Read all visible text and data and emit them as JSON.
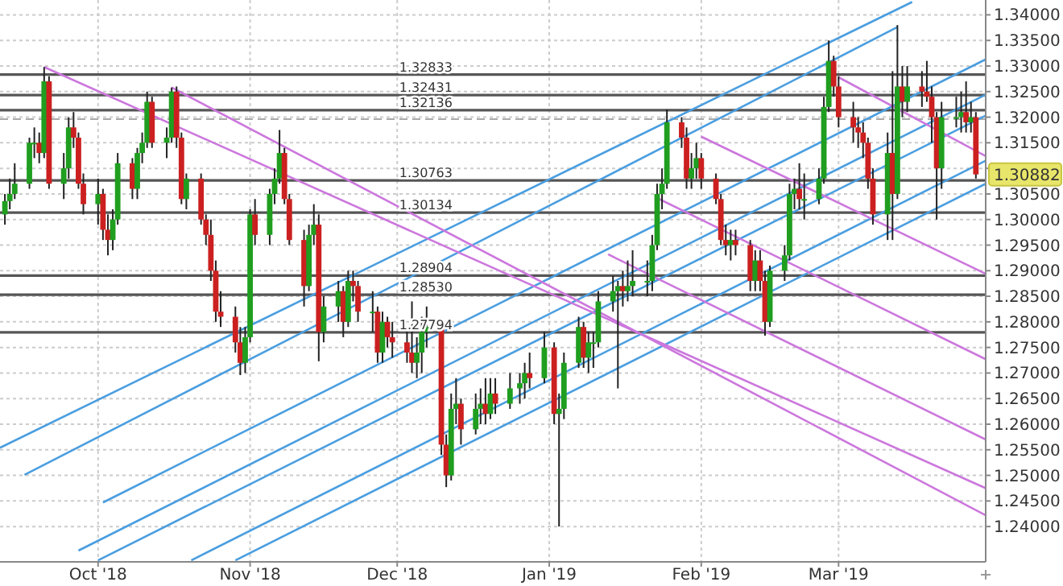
{
  "chart_data": {
    "type": "candlestick",
    "x": [
      "2018-09-12",
      "2018-09-13",
      "2018-09-14",
      "2018-09-17",
      "2018-09-18",
      "2018-09-19",
      "2018-09-20",
      "2018-09-21",
      "2018-09-24",
      "2018-09-25",
      "2018-09-26",
      "2018-09-27",
      "2018-09-28",
      "2018-10-01",
      "2018-10-02",
      "2018-10-03",
      "2018-10-04",
      "2018-10-05",
      "2018-10-08",
      "2018-10-09",
      "2018-10-10",
      "2018-10-11",
      "2018-10-12",
      "2018-10-15",
      "2018-10-16",
      "2018-10-17",
      "2018-10-18",
      "2018-10-19",
      "2018-10-22",
      "2018-10-23",
      "2018-10-24",
      "2018-10-25",
      "2018-10-26",
      "2018-10-29",
      "2018-10-30",
      "2018-10-31",
      "2018-11-01",
      "2018-11-02",
      "2018-11-05",
      "2018-11-06",
      "2018-11-07",
      "2018-11-08",
      "2018-11-09",
      "2018-11-12",
      "2018-11-13",
      "2018-11-14",
      "2018-11-15",
      "2018-11-16",
      "2018-11-19",
      "2018-11-20",
      "2018-11-21",
      "2018-11-22",
      "2018-11-23",
      "2018-11-26",
      "2018-11-27",
      "2018-11-28",
      "2018-11-29",
      "2018-11-30",
      "2018-12-03",
      "2018-12-04",
      "2018-12-05",
      "2018-12-06",
      "2018-12-07",
      "2018-12-10",
      "2018-12-11",
      "2018-12-12",
      "2018-12-13",
      "2018-12-14",
      "2018-12-17",
      "2018-12-18",
      "2018-12-19",
      "2018-12-20",
      "2018-12-21",
      "2018-12-24",
      "2018-12-26",
      "2018-12-27",
      "2018-12-28",
      "2018-12-31",
      "2019-01-02",
      "2019-01-03",
      "2019-01-04",
      "2019-01-07",
      "2019-01-08",
      "2019-01-09",
      "2019-01-10",
      "2019-01-11",
      "2019-01-14",
      "2019-01-15",
      "2019-01-16",
      "2019-01-17",
      "2019-01-18",
      "2019-01-21",
      "2019-01-22",
      "2019-01-23",
      "2019-01-24",
      "2019-01-25",
      "2019-01-28",
      "2019-01-29",
      "2019-01-30",
      "2019-01-31",
      "2019-02-01",
      "2019-02-04",
      "2019-02-05",
      "2019-02-06",
      "2019-02-07",
      "2019-02-08",
      "2019-02-11",
      "2019-02-12",
      "2019-02-13",
      "2019-02-14",
      "2019-02-15",
      "2019-02-18",
      "2019-02-19",
      "2019-02-20",
      "2019-02-21",
      "2019-02-22",
      "2019-02-25",
      "2019-02-26",
      "2019-02-27",
      "2019-02-28",
      "2019-03-01",
      "2019-03-04",
      "2019-03-05",
      "2019-03-06",
      "2019-03-07",
      "2019-03-08",
      "2019-03-11",
      "2019-03-12",
      "2019-03-13",
      "2019-03-14",
      "2019-03-15",
      "2019-03-18",
      "2019-03-19",
      "2019-03-20",
      "2019-03-21",
      "2019-03-22",
      "2019-03-25",
      "2019-03-26",
      "2019-03-27",
      "2019-03-28",
      "2019-03-29"
    ],
    "ohlc": [
      [
        1.301,
        1.305,
        1.299,
        1.3036
      ],
      [
        1.3036,
        1.308,
        1.302,
        1.305
      ],
      [
        1.305,
        1.311,
        1.304,
        1.307
      ],
      [
        1.307,
        1.316,
        1.306,
        1.315
      ],
      [
        1.315,
        1.318,
        1.312,
        1.315
      ],
      [
        1.315,
        1.317,
        1.311,
        1.313
      ],
      [
        1.313,
        1.3298,
        1.312,
        1.327
      ],
      [
        1.327,
        1.328,
        1.306,
        1.307
      ],
      [
        1.307,
        1.313,
        1.304,
        1.31
      ],
      [
        1.31,
        1.32,
        1.308,
        1.318
      ],
      [
        1.318,
        1.321,
        1.314,
        1.316
      ],
      [
        1.316,
        1.317,
        1.306,
        1.307
      ],
      [
        1.307,
        1.309,
        1.301,
        1.303
      ],
      [
        1.303,
        1.308,
        1.299,
        1.305
      ],
      [
        1.305,
        1.306,
        1.296,
        1.298
      ],
      [
        1.298,
        1.301,
        1.293,
        1.296
      ],
      [
        1.296,
        1.302,
        1.294,
        1.3
      ],
      [
        1.3,
        1.313,
        1.299,
        1.311
      ],
      [
        1.311,
        1.312,
        1.304,
        1.306
      ],
      [
        1.306,
        1.314,
        1.304,
        1.313
      ],
      [
        1.313,
        1.317,
        1.311,
        1.315
      ],
      [
        1.315,
        1.325,
        1.314,
        1.323
      ],
      [
        1.323,
        1.324,
        1.314,
        1.315
      ],
      [
        1.315,
        1.318,
        1.312,
        1.316
      ],
      [
        1.316,
        1.3258,
        1.315,
        1.325
      ],
      [
        1.325,
        1.326,
        1.314,
        1.316
      ],
      [
        1.316,
        1.317,
        1.303,
        1.304
      ],
      [
        1.304,
        1.309,
        1.302,
        1.308
      ],
      [
        1.308,
        1.309,
        1.299,
        1.3
      ],
      [
        1.3,
        1.301,
        1.295,
        1.297
      ],
      [
        1.297,
        1.3,
        1.288,
        1.29
      ],
      [
        1.29,
        1.292,
        1.28,
        1.282
      ],
      [
        1.282,
        1.286,
        1.279,
        1.281
      ],
      [
        1.281,
        1.283,
        1.274,
        1.276
      ],
      [
        1.276,
        1.279,
        1.2696,
        1.272
      ],
      [
        1.272,
        1.279,
        1.27,
        1.277
      ],
      [
        1.277,
        1.302,
        1.276,
        1.301
      ],
      [
        1.301,
        1.304,
        1.295,
        1.297
      ],
      [
        1.297,
        1.306,
        1.295,
        1.305
      ],
      [
        1.305,
        1.31,
        1.303,
        1.308
      ],
      [
        1.308,
        1.3175,
        1.307,
        1.313
      ],
      [
        1.313,
        1.314,
        1.303,
        1.304
      ],
      [
        1.304,
        1.305,
        1.295,
        1.296
      ],
      [
        1.296,
        1.298,
        1.283,
        1.287
      ],
      [
        1.287,
        1.299,
        1.286,
        1.297
      ],
      [
        1.297,
        1.303,
        1.295,
        1.299
      ],
      [
        1.299,
        1.301,
        1.2723,
        1.278
      ],
      [
        1.278,
        1.285,
        1.276,
        1.283
      ],
      [
        1.283,
        1.288,
        1.28,
        1.286
      ],
      [
        1.286,
        1.287,
        1.277,
        1.28
      ],
      [
        1.28,
        1.29,
        1.279,
        1.288
      ],
      [
        1.288,
        1.29,
        1.284,
        1.287
      ],
      [
        1.287,
        1.288,
        1.28,
        1.282
      ],
      [
        1.282,
        1.286,
        1.278,
        1.282
      ],
      [
        1.282,
        1.283,
        1.272,
        1.274
      ],
      [
        1.274,
        1.282,
        1.272,
        1.28
      ],
      [
        1.28,
        1.281,
        1.275,
        1.277
      ],
      [
        1.277,
        1.28,
        1.273,
        1.276
      ],
      [
        1.276,
        1.279,
        1.272,
        1.274
      ],
      [
        1.274,
        1.284,
        1.27,
        1.272
      ],
      [
        1.272,
        1.277,
        1.269,
        1.274
      ],
      [
        1.274,
        1.281,
        1.27,
        1.278
      ],
      [
        1.278,
        1.283,
        1.275,
        1.279
      ],
      [
        1.279,
        1.28,
        1.254,
        1.256
      ],
      [
        1.256,
        1.258,
        1.2477,
        1.25
      ],
      [
        1.25,
        1.266,
        1.249,
        1.263
      ],
      [
        1.263,
        1.269,
        1.26,
        1.264
      ],
      [
        1.264,
        1.265,
        1.256,
        1.259
      ],
      [
        1.259,
        1.266,
        1.258,
        1.263
      ],
      [
        1.263,
        1.267,
        1.26,
        1.264
      ],
      [
        1.264,
        1.269,
        1.26,
        1.262
      ],
      [
        1.262,
        1.269,
        1.261,
        1.266
      ],
      [
        1.266,
        1.269,
        1.262,
        1.264
      ],
      [
        1.264,
        1.27,
        1.263,
        1.267
      ],
      [
        1.267,
        1.27,
        1.264,
        1.268
      ],
      [
        1.268,
        1.272,
        1.265,
        1.27
      ],
      [
        1.27,
        1.274,
        1.267,
        1.269
      ],
      [
        1.269,
        1.278,
        1.268,
        1.275
      ],
      [
        1.275,
        1.276,
        1.26,
        1.262
      ],
      [
        1.262,
        1.266,
        1.24,
        1.263
      ],
      [
        1.263,
        1.274,
        1.261,
        1.272
      ],
      [
        1.272,
        1.281,
        1.271,
        1.279
      ],
      [
        1.279,
        1.28,
        1.271,
        1.273
      ],
      [
        1.273,
        1.278,
        1.27,
        1.276
      ],
      [
        1.276,
        1.278,
        1.271,
        1.276
      ],
      [
        1.276,
        1.286,
        1.275,
        1.284
      ],
      [
        1.284,
        1.289,
        1.282,
        1.286
      ],
      [
        1.286,
        1.288,
        1.267,
        1.287
      ],
      [
        1.287,
        1.29,
        1.283,
        1.286
      ],
      [
        1.286,
        1.292,
        1.284,
        1.287
      ],
      [
        1.287,
        1.294,
        1.285,
        1.288
      ],
      [
        1.288,
        1.292,
        1.285,
        1.288
      ],
      [
        1.288,
        1.297,
        1.286,
        1.295
      ],
      [
        1.295,
        1.307,
        1.294,
        1.305
      ],
      [
        1.305,
        1.31,
        1.302,
        1.307
      ],
      [
        1.307,
        1.3215,
        1.306,
        1.319
      ],
      [
        1.319,
        1.32,
        1.314,
        1.316
      ],
      [
        1.316,
        1.318,
        1.306,
        1.308
      ],
      [
        1.308,
        1.313,
        1.306,
        1.31
      ],
      [
        1.31,
        1.315,
        1.308,
        1.312
      ],
      [
        1.312,
        1.313,
        1.306,
        1.308
      ],
      [
        1.308,
        1.309,
        1.303,
        1.304
      ],
      [
        1.304,
        1.305,
        1.295,
        1.296
      ],
      [
        1.296,
        1.299,
        1.293,
        1.295
      ],
      [
        1.295,
        1.298,
        1.292,
        1.296
      ],
      [
        1.296,
        1.298,
        1.293,
        1.295
      ],
      [
        1.295,
        1.296,
        1.286,
        1.288
      ],
      [
        1.288,
        1.294,
        1.286,
        1.292
      ],
      [
        1.292,
        1.294,
        1.286,
        1.288
      ],
      [
        1.288,
        1.29,
        1.2773,
        1.28
      ],
      [
        1.28,
        1.291,
        1.279,
        1.29
      ],
      [
        1.29,
        1.295,
        1.288,
        1.293
      ],
      [
        1.293,
        1.307,
        1.292,
        1.305
      ],
      [
        1.305,
        1.308,
        1.302,
        1.306
      ],
      [
        1.306,
        1.311,
        1.302,
        1.304
      ],
      [
        1.304,
        1.309,
        1.3,
        1.304
      ],
      [
        1.304,
        1.31,
        1.303,
        1.308
      ],
      [
        1.308,
        1.324,
        1.307,
        1.322
      ],
      [
        1.322,
        1.335,
        1.321,
        1.331
      ],
      [
        1.331,
        1.332,
        1.324,
        1.326
      ],
      [
        1.326,
        1.328,
        1.318,
        1.32
      ],
      [
        1.32,
        1.323,
        1.315,
        1.318
      ],
      [
        1.318,
        1.32,
        1.314,
        1.317
      ],
      [
        1.317,
        1.319,
        1.312,
        1.315
      ],
      [
        1.315,
        1.316,
        1.306,
        1.308
      ],
      [
        1.308,
        1.31,
        1.299,
        1.301
      ],
      [
        1.301,
        1.317,
        1.296,
        1.313
      ],
      [
        1.313,
        1.329,
        1.296,
        1.305
      ],
      [
        1.305,
        1.338,
        1.304,
        1.326
      ],
      [
        1.326,
        1.33,
        1.32,
        1.323
      ],
      [
        1.323,
        1.33,
        1.321,
        1.326
      ],
      [
        1.326,
        1.329,
        1.322,
        1.325
      ],
      [
        1.325,
        1.331,
        1.323,
        1.324
      ],
      [
        1.324,
        1.326,
        1.315,
        1.32
      ],
      [
        1.32,
        1.321,
        1.3,
        1.31
      ],
      [
        1.31,
        1.323,
        1.306,
        1.32
      ],
      [
        1.32,
        1.324,
        1.318,
        1.32
      ],
      [
        1.32,
        1.325,
        1.317,
        1.321
      ],
      [
        1.321,
        1.327,
        1.317,
        1.319
      ],
      [
        1.319,
        1.323,
        1.317,
        1.32
      ],
      [
        1.32,
        1.321,
        1.308,
        1.30882
      ]
    ],
    "xlim": [
      "2018-09-11",
      "2019-03-31"
    ],
    "xticks": [
      {
        "value": "2018-10-01",
        "label": "Oct '18"
      },
      {
        "value": "2018-11-01",
        "label": "Nov '18"
      },
      {
        "value": "2018-12-01",
        "label": "Dec '18"
      },
      {
        "value": "2019-01-01",
        "label": "Jan '19"
      },
      {
        "value": "2019-02-01",
        "label": "Feb '19"
      },
      {
        "value": "2019-03-01",
        "label": "Mar '19"
      }
    ],
    "ylim": [
      1.2331,
      1.3429
    ],
    "yticks": [
      {
        "value": 1.24,
        "label": "1.24000"
      },
      {
        "value": 1.245,
        "label": "1.24500"
      },
      {
        "value": 1.25,
        "label": "1.25000"
      },
      {
        "value": 1.255,
        "label": "1.25500"
      },
      {
        "value": 1.26,
        "label": "1.26000"
      },
      {
        "value": 1.265,
        "label": "1.26500"
      },
      {
        "value": 1.27,
        "label": "1.27000"
      },
      {
        "value": 1.275,
        "label": "1.27500"
      },
      {
        "value": 1.28,
        "label": "1.28000"
      },
      {
        "value": 1.285,
        "label": "1.28500"
      },
      {
        "value": 1.29,
        "label": "1.29000"
      },
      {
        "value": 1.295,
        "label": "1.29500"
      },
      {
        "value": 1.3,
        "label": "1.30000"
      },
      {
        "value": 1.305,
        "label": "1.30500"
      },
      {
        "value": 1.31,
        "label": null
      },
      {
        "value": 1.315,
        "label": "1.31500"
      },
      {
        "value": 1.32,
        "label": "1.32000"
      },
      {
        "value": 1.325,
        "label": "1.32500"
      },
      {
        "value": 1.33,
        "label": "1.33000"
      },
      {
        "value": 1.335,
        "label": "1.33500"
      },
      {
        "value": 1.34,
        "label": "1.34000"
      }
    ],
    "grid": true,
    "series": [
      {
        "type": "line",
        "x": [
          "2018-09-11",
          "2019-03-16"
        ],
        "values": [
          1.2554,
          1.3425
        ],
        "color": "#4a9ee0"
      },
      {
        "type": "line",
        "x": [
          "2018-09-16",
          "2019-03-13"
        ],
        "values": [
          1.2501,
          1.3376
        ],
        "color": "#4a9ee0"
      },
      {
        "type": "line",
        "x": [
          "2018-10-02",
          "2019-03-31"
        ],
        "values": [
          1.2447,
          1.3313
        ],
        "color": "#4a9ee0"
      },
      {
        "type": "line",
        "x": [
          "2018-09-27",
          "2019-03-31"
        ],
        "values": [
          1.2353,
          1.3244
        ],
        "color": "#4a9ee0"
      },
      {
        "type": "line",
        "x": [
          "2018-10-01",
          "2019-03-31"
        ],
        "values": [
          1.2334,
          1.3203
        ],
        "color": "#4a9ee0"
      },
      {
        "type": "line",
        "x": [
          "2018-10-20",
          "2019-03-31"
        ],
        "values": [
          1.2334,
          1.3115
        ],
        "color": "#4a9ee0"
      },
      {
        "type": "line",
        "x": [
          "2018-10-29",
          "2019-03-31"
        ],
        "values": [
          1.2334,
          1.307
        ],
        "color": "#4a9ee0"
      },
      {
        "type": "line",
        "x": [
          "2018-09-20",
          "2019-03-31"
        ],
        "values": [
          1.3298,
          1.2475
        ],
        "color": "#cc77dd"
      },
      {
        "type": "line",
        "x": [
          "2018-10-16",
          "2019-03-31"
        ],
        "values": [
          1.3258,
          1.2422
        ],
        "color": "#cc77dd"
      },
      {
        "type": "line",
        "x": [
          "2019-01-13",
          "2019-03-31"
        ],
        "values": [
          1.2932,
          1.257
        ],
        "color": "#cc77dd"
      },
      {
        "type": "line",
        "x": [
          "2019-01-23",
          "2019-03-31"
        ],
        "values": [
          1.3042,
          1.2727
        ],
        "color": "#cc77dd"
      },
      {
        "type": "line",
        "x": [
          "2019-02-01",
          "2019-03-31"
        ],
        "values": [
          1.3162,
          1.2894
        ],
        "color": "#cc77dd"
      },
      {
        "type": "line",
        "x": [
          "2019-03-01",
          "2019-03-31"
        ],
        "values": [
          1.3278,
          1.3124
        ],
        "color": "#cc77dd"
      }
    ],
    "ref_lines": [
      {
        "axis": "y",
        "value": 1.3196,
        "color": "#aaaaaa",
        "line_style": "dashed"
      },
      {
        "axis": "y",
        "value": 1.32833,
        "label": "1.32833",
        "color": "#555555"
      },
      {
        "axis": "y",
        "value": 1.32431,
        "label": "1.32431",
        "color": "#555555"
      },
      {
        "axis": "y",
        "value": 1.32136,
        "label": "1.32136",
        "color": "#555555"
      },
      {
        "axis": "y",
        "value": 1.30763,
        "label": "1.30763",
        "color": "#555555"
      },
      {
        "axis": "y",
        "value": 1.30134,
        "label": "1.30134",
        "color": "#555555"
      },
      {
        "axis": "y",
        "value": 1.28904,
        "label": "1.28904",
        "color": "#555555"
      },
      {
        "axis": "y",
        "value": 1.2853,
        "label": "1.28530",
        "color": "#555555"
      },
      {
        "axis": "y",
        "value": 1.27794,
        "label": "1.27794",
        "color": "#555555"
      }
    ],
    "annotations": [
      "1.30882"
    ]
  }
}
